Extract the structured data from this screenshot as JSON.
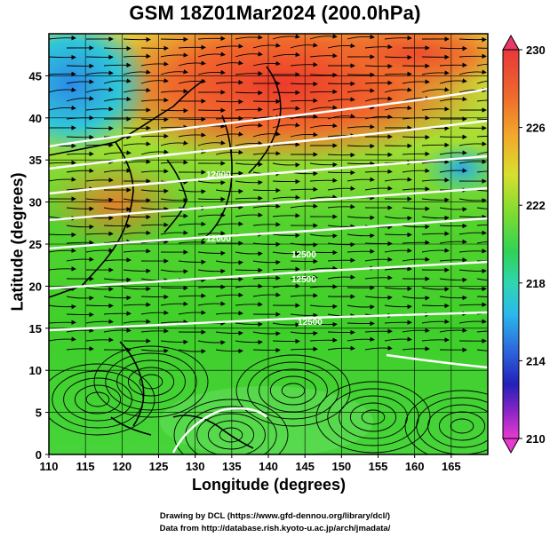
{
  "title": "GSM 18Z01Mar2024 (200.0hPa)",
  "xlabel": "Longitude (degrees)",
  "ylabel": "Latitude (degrees)",
  "credits": {
    "line1": "Drawing by DCL (https://www.gfd-dennou.org/library/dcl/)",
    "line2": "Data from http://database.rish.kyoto-u.ac.jp/arch/jmadata/"
  },
  "map": {
    "xlim": [
      110,
      170
    ],
    "ylim": [
      0,
      50
    ],
    "xticks": [
      110,
      115,
      120,
      125,
      130,
      135,
      140,
      145,
      150,
      155,
      160,
      165
    ],
    "yticks": [
      0,
      5,
      10,
      15,
      20,
      25,
      30,
      35,
      40,
      45
    ]
  },
  "colorbar": {
    "min": 210,
    "max": 230,
    "tick_labels": [
      "230",
      "226",
      "222",
      "218",
      "214",
      "210"
    ],
    "colors": [
      "#e9386a",
      "#e8422f",
      "#f28a2a",
      "#e8c62a",
      "#b7e33a",
      "#3fcf2c",
      "#35d06a",
      "#2fd8c6",
      "#2aa6ee",
      "#2e58d8",
      "#2a1fbe",
      "#8a22c7",
      "#e63ad2"
    ]
  },
  "contour_labels": [
    "12000",
    "12000",
    "12500",
    "12500",
    "12500"
  ],
  "chart_data": {
    "type": "heatmap",
    "variable": "temperature (K) with wind streamlines and geopotential height contours",
    "level": "200.0hPa",
    "regions": [
      {
        "lon": [
          110,
          120
        ],
        "lat": [
          38,
          50
        ],
        "value": 218
      },
      {
        "lon": [
          130,
          150
        ],
        "lat": [
          38,
          50
        ],
        "value": 229
      },
      {
        "lon": [
          120,
          130
        ],
        "lat": [
          28,
          36
        ],
        "value": 227
      },
      {
        "lon": [
          110,
          170
        ],
        "lat": [
          15,
          30
        ],
        "value": 222
      },
      {
        "lon": [
          110,
          170
        ],
        "lat": [
          0,
          15
        ],
        "value": 221
      },
      {
        "lon": [
          155,
          165
        ],
        "lat": [
          32,
          36
        ],
        "value": 219
      }
    ],
    "contours": [
      {
        "value": 12000,
        "lat_approx": 31
      },
      {
        "value": 12500,
        "lat_approx": 18
      }
    ]
  }
}
